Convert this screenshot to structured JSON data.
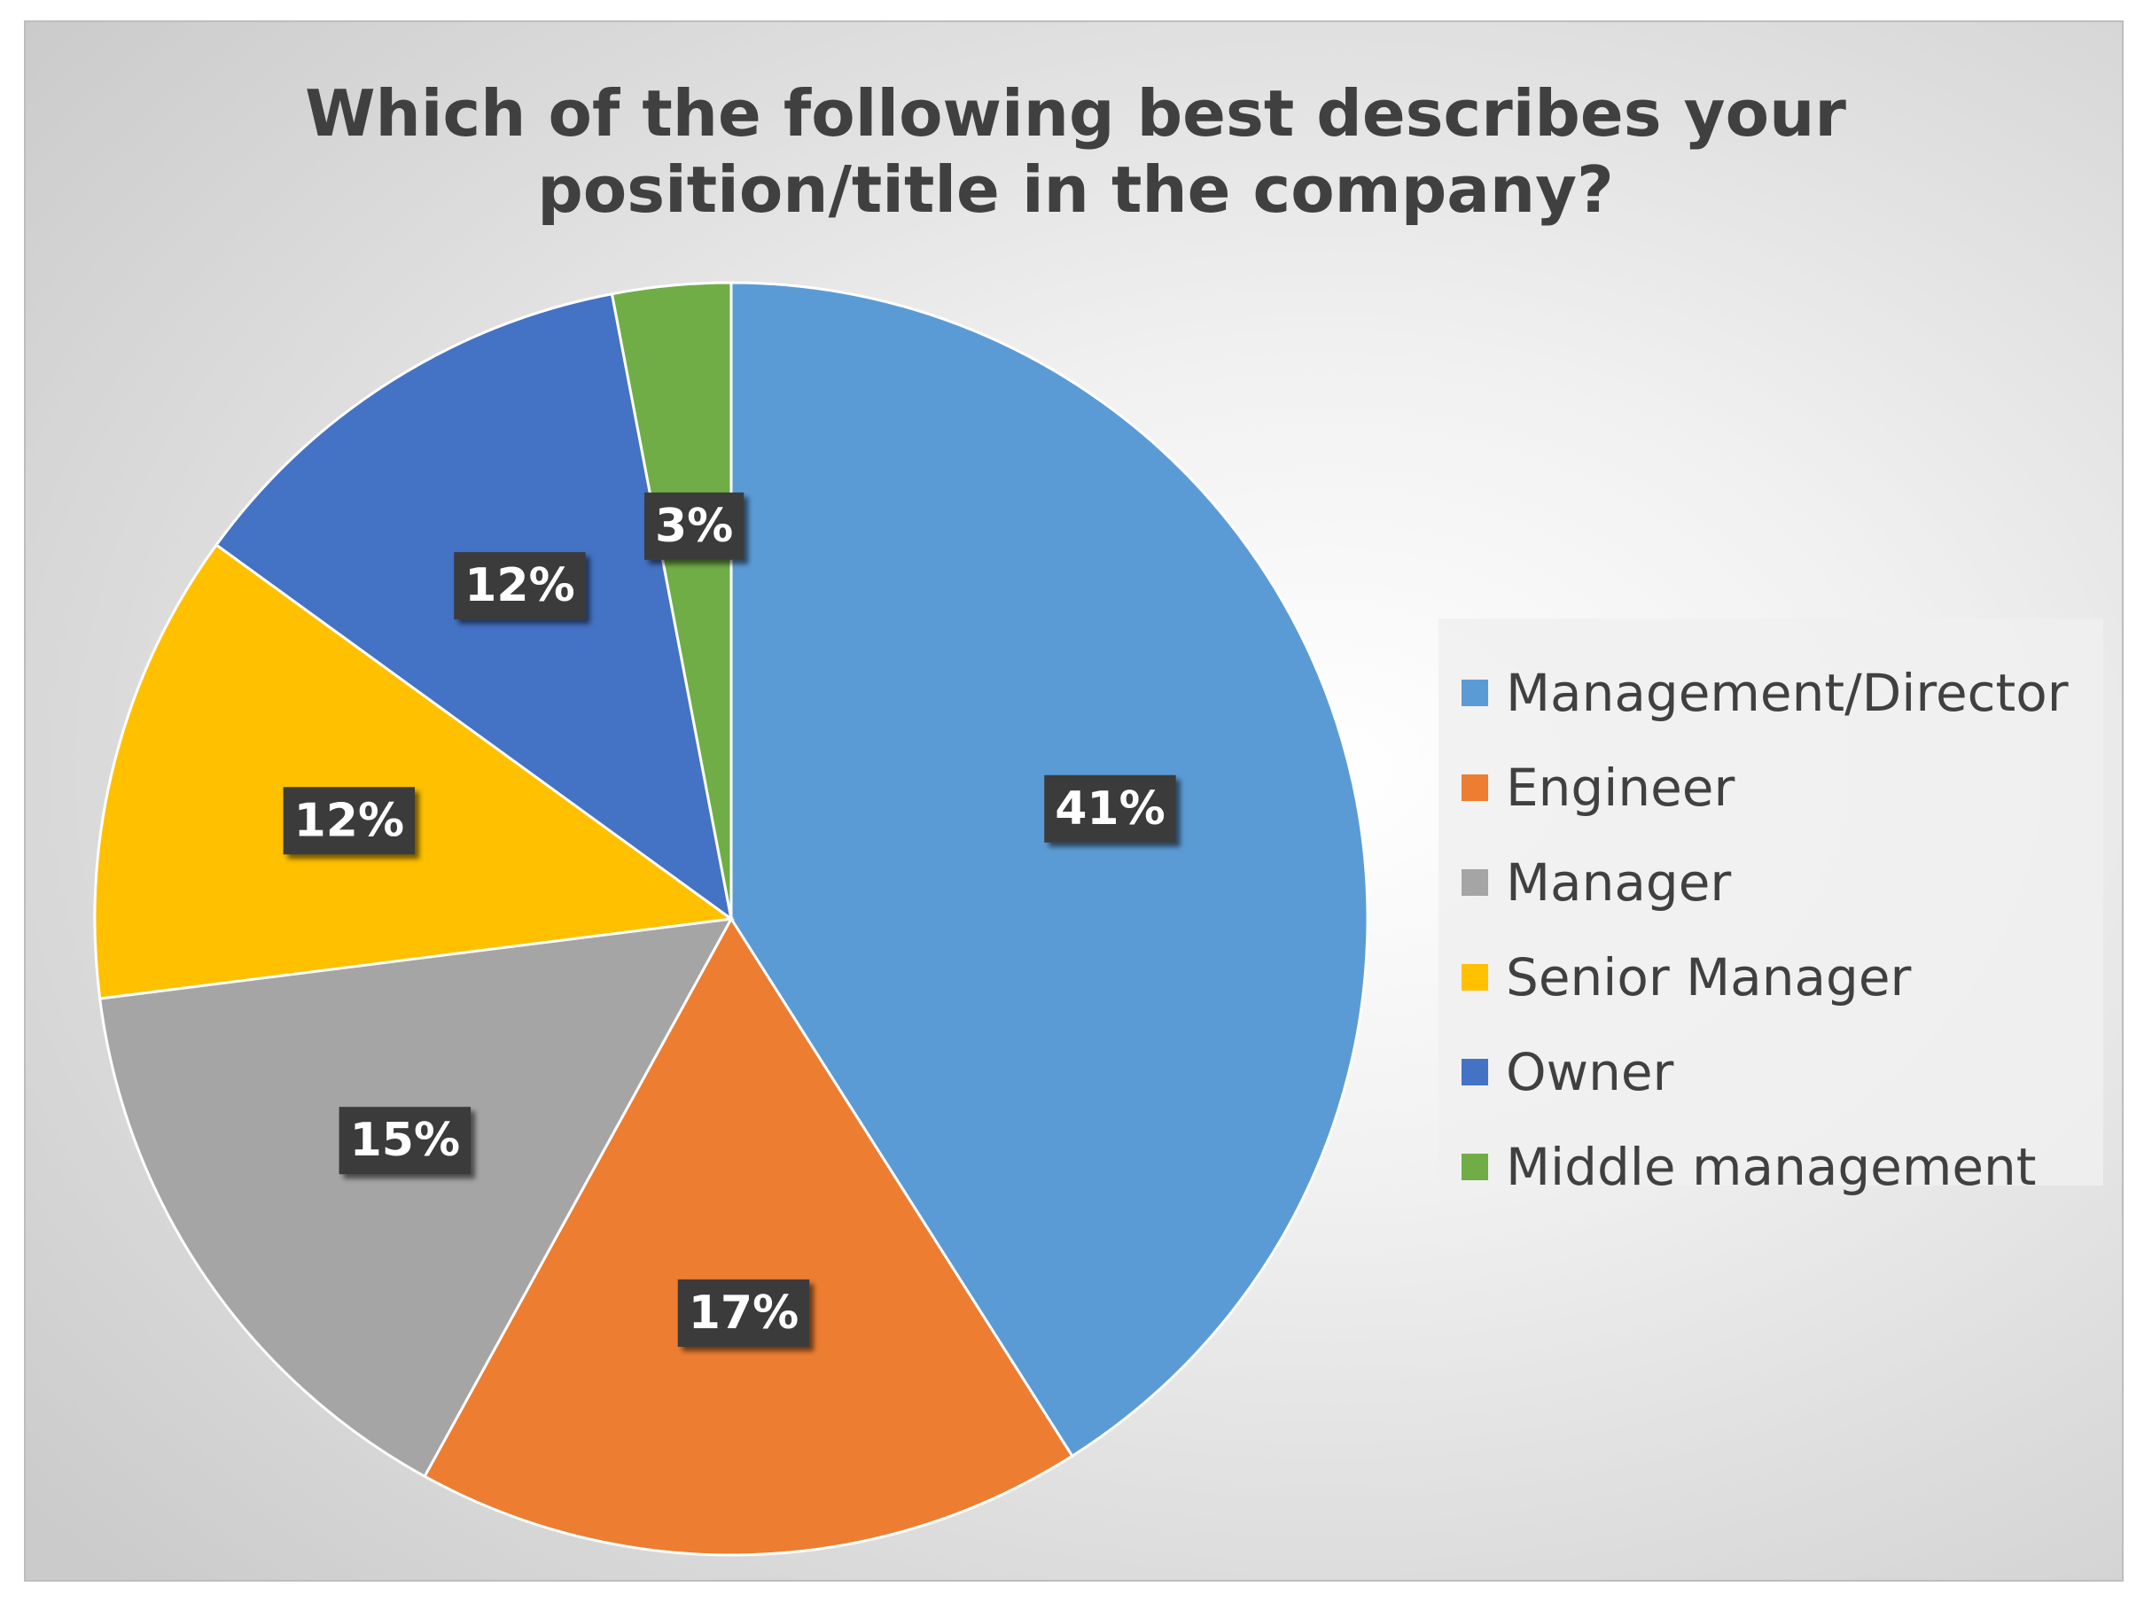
{
  "chart_data": {
    "type": "pie",
    "title": "Which of the following best describes your position/title in the company?",
    "title_lines": [
      "Which of the following best describes your",
      "position/title in the company?"
    ],
    "start_angle_deg": 0,
    "direction": "clockwise",
    "slices": [
      {
        "label": "Management/Director",
        "value": 41,
        "display": "41%",
        "color": "#5b9bd5"
      },
      {
        "label": "Engineer",
        "value": 17,
        "display": "17%",
        "color": "#ed7d31"
      },
      {
        "label": "Manager",
        "value": 15,
        "display": "15%",
        "color": "#a5a5a5"
      },
      {
        "label": "Senior Manager",
        "value": 12,
        "display": "12%",
        "color": "#ffc000"
      },
      {
        "label": "Owner",
        "value": 12,
        "display": "12%",
        "color": "#4472c4"
      },
      {
        "label": "Middle management",
        "value": 3,
        "display": "3%",
        "color": "#70ad47"
      }
    ],
    "legend_position": "right",
    "data_label_style": "white bold text on dark box with shadow"
  }
}
